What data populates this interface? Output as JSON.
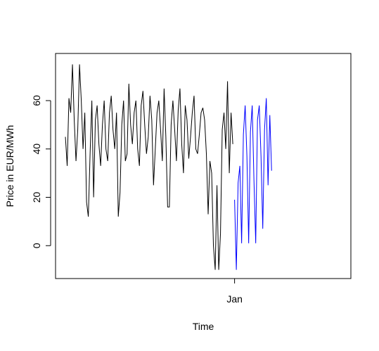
{
  "chart_data": {
    "type": "line",
    "x_label": "Time",
    "y_label": "Price in EUR/MWh",
    "x": [
      1,
      2,
      3,
      4,
      5,
      6,
      7,
      8,
      9,
      10,
      11,
      12,
      13,
      14,
      15,
      16,
      17,
      18,
      19,
      20,
      21,
      22,
      23,
      24,
      25,
      26,
      27,
      28,
      29,
      30,
      31,
      32,
      33,
      34,
      35,
      36,
      37,
      38,
      39,
      40,
      41,
      42,
      43,
      44,
      45,
      46,
      47,
      48,
      49,
      50,
      51,
      52,
      53,
      54,
      55,
      56,
      57,
      58,
      59,
      60,
      61,
      62,
      63,
      64,
      65,
      66,
      67,
      68,
      69,
      70,
      71,
      72,
      73,
      74,
      75,
      76,
      77,
      78,
      79,
      80,
      81,
      82,
      83,
      84,
      85,
      86,
      87,
      88,
      89,
      90,
      91,
      92,
      93,
      94,
      95,
      96,
      97,
      98,
      99,
      100,
      101,
      102,
      103,
      104,
      105,
      106,
      107,
      108,
      109,
      110,
      111,
      112,
      113,
      114,
      115,
      116,
      117,
      118
    ],
    "series": [
      {
        "color": "#000000",
        "values": [
          45,
          33,
          61,
          55,
          75,
          52,
          35,
          48,
          75,
          60,
          40,
          55,
          18,
          12,
          38,
          60,
          20,
          52,
          58,
          42,
          33,
          50,
          60,
          40,
          35,
          55,
          62,
          48,
          40,
          55,
          12,
          22,
          50,
          60,
          35,
          38,
          67,
          50,
          42,
          55,
          60,
          40,
          33,
          58,
          64,
          50,
          38,
          45,
          62,
          52,
          25,
          40,
          55,
          60,
          48,
          35,
          65,
          45,
          16,
          16,
          50,
          60,
          48,
          35,
          56,
          65,
          42,
          30,
          58,
          52,
          36,
          45,
          55,
          62,
          40,
          38,
          46,
          55,
          57,
          52,
          38,
          13,
          35,
          30,
          0,
          -10,
          25,
          -10,
          5,
          48,
          55,
          40,
          68,
          30,
          55,
          42,
          null,
          null,
          null,
          null,
          null,
          null,
          null,
          null,
          null,
          null,
          null,
          null,
          null,
          null,
          null,
          null,
          null,
          null,
          null,
          null,
          null,
          null
        ]
      },
      {
        "color": "#0000ff",
        "values": [
          null,
          null,
          null,
          null,
          null,
          null,
          null,
          null,
          null,
          null,
          null,
          null,
          null,
          null,
          null,
          null,
          null,
          null,
          null,
          null,
          null,
          null,
          null,
          null,
          null,
          null,
          null,
          null,
          null,
          null,
          null,
          null,
          null,
          null,
          null,
          null,
          null,
          null,
          null,
          null,
          null,
          null,
          null,
          null,
          null,
          null,
          null,
          null,
          null,
          null,
          null,
          null,
          null,
          null,
          null,
          null,
          null,
          null,
          null,
          null,
          null,
          null,
          null,
          null,
          null,
          null,
          null,
          null,
          null,
          null,
          null,
          null,
          null,
          null,
          null,
          null,
          null,
          null,
          null,
          null,
          null,
          null,
          null,
          null,
          null,
          null,
          null,
          null,
          null,
          null,
          null,
          null,
          null,
          null,
          null,
          null,
          19,
          -10,
          26,
          33,
          1,
          46,
          58,
          37,
          1,
          47,
          58,
          27,
          1,
          52,
          58,
          37,
          7,
          48,
          61,
          25,
          54,
          31
        ]
      }
    ],
    "xlim": [
      -4.6,
      163
    ],
    "ylim": [
      -13.6,
      79.5
    ],
    "xticks": [
      {
        "value": 97,
        "label": "Jan"
      }
    ],
    "yticks": [
      0,
      20,
      40,
      60
    ]
  }
}
